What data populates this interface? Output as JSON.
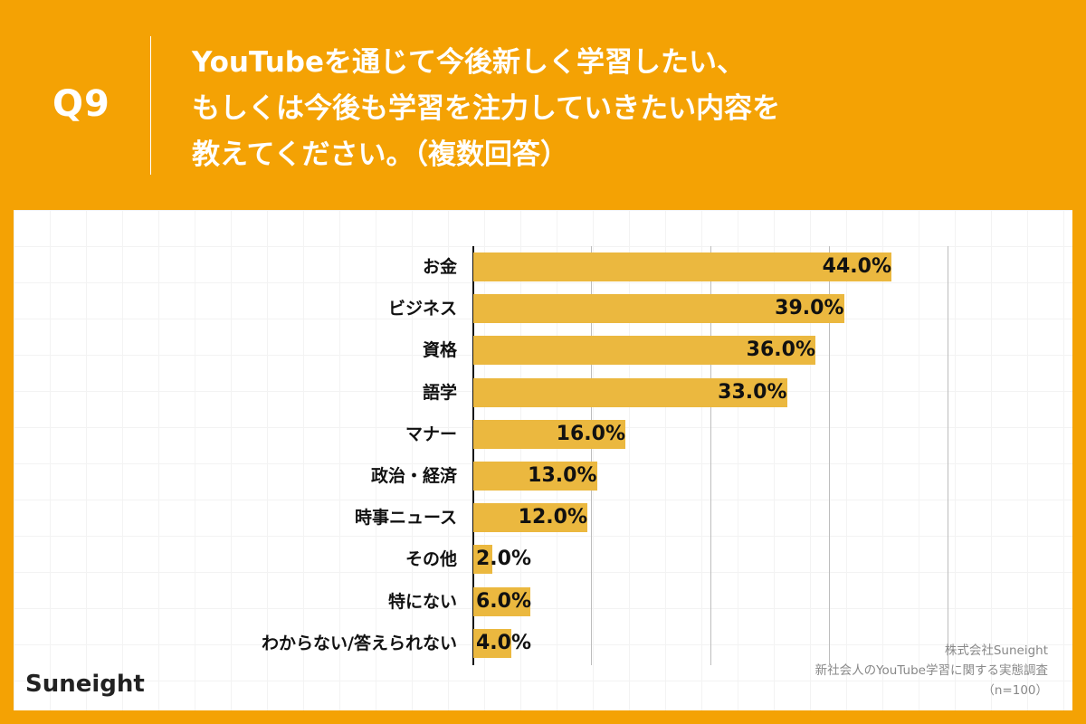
{
  "header": {
    "question_number": "Q9",
    "title_lines": [
      "YouTubeを通じて今後新しく学習したい、",
      "もしくは今後も学習を注力していきたい内容を",
      "教えてください。（複数回答）"
    ]
  },
  "colors": {
    "background": "#f4a204",
    "bar": "#ebb83f",
    "text": "#111111",
    "gridline": "#bdbdbd",
    "source_text": "#888888"
  },
  "logo": {
    "text": "Suneight"
  },
  "source": {
    "lines": [
      "株式会社Suneight",
      "新社会人のYouTube学習に関する実態調査",
      "（n=100）"
    ]
  },
  "chart_data": {
    "type": "bar",
    "orientation": "horizontal",
    "title": "YouTubeを通じて今後新しく学習したい、もしくは今後も学習を注力していきたい内容を教えてください。（複数回答）",
    "xlabel": "",
    "ylabel": "",
    "xlim": [
      0,
      50
    ],
    "grid": true,
    "gridlines_at": [
      12.5,
      25,
      37.5,
      50
    ],
    "categories": [
      "お金",
      "ビジネス",
      "資格",
      "語学",
      "マナー",
      "政治・経済",
      "時事ニュース",
      "その他",
      "特にない",
      "わからない/答えられない"
    ],
    "values": [
      44.0,
      39.0,
      36.0,
      33.0,
      16.0,
      13.0,
      12.0,
      2.0,
      6.0,
      4.0
    ],
    "value_labels": [
      "44.0%",
      "39.0%",
      "36.0%",
      "33.0%",
      "16.0%",
      "13.0%",
      "12.0%",
      "2.0%",
      "6.0%",
      "4.0%"
    ],
    "unit": "%",
    "n": 100
  }
}
